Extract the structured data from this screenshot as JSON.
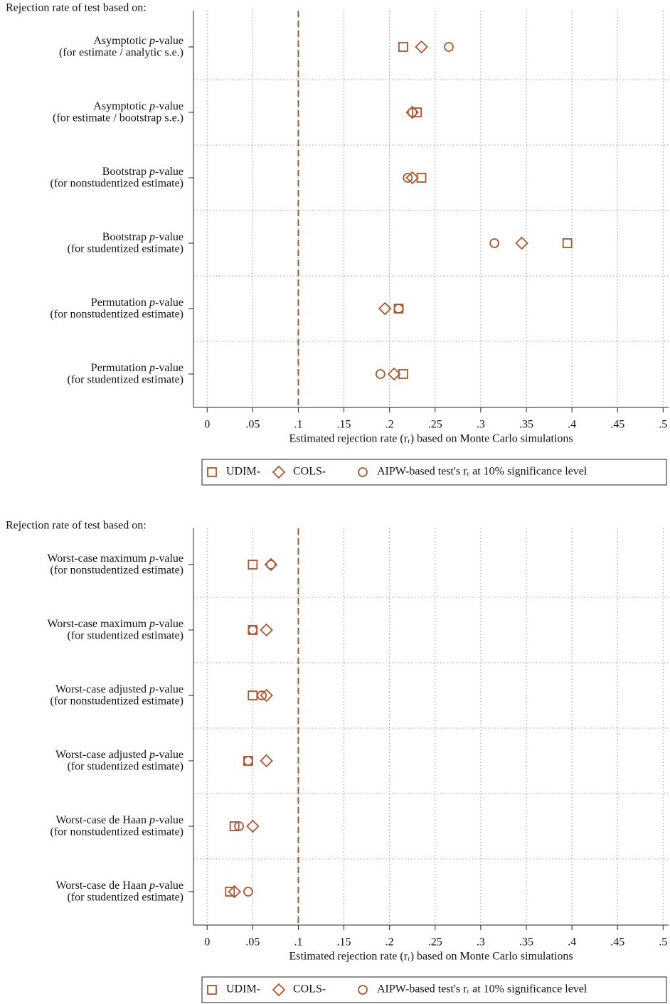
{
  "chart_data": [
    {
      "type": "dot",
      "title": "Rejection rate of test based on:",
      "categories": [
        [
          "Asymptotic p-value",
          "(for estimate / analytic s.e.)"
        ],
        [
          "Asymptotic p-value",
          "(for estimate / bootstrap s.e.)"
        ],
        [
          "Bootstrap p-value",
          "(for nonstudentized estimate)"
        ],
        [
          "Bootstrap p-value",
          "(for studentized estimate)"
        ],
        [
          "Permutation p-value",
          "(for nonstudentized estimate)"
        ],
        [
          "Permutation p-value",
          "(for studentized estimate)"
        ]
      ],
      "series": [
        {
          "name": "UDIM-",
          "marker": "square",
          "color": "#a9562f",
          "values": [
            0.215,
            0.23,
            0.235,
            0.395,
            0.21,
            0.215
          ]
        },
        {
          "name": "COLS-",
          "marker": "diamond",
          "color": "#a9562f",
          "values": [
            0.235,
            0.225,
            0.225,
            0.345,
            0.195,
            0.205
          ]
        },
        {
          "name": "AIPW-based test's rᵣ at 10% significance level",
          "marker": "circle",
          "color": "#a9562f",
          "values": [
            0.265,
            0.225,
            0.22,
            0.315,
            0.21,
            0.19
          ]
        }
      ],
      "xlabel": "Estimated rejection rate (rᵣ) based on Monte Carlo simulations",
      "xlim": [
        -0.015,
        0.506
      ],
      "xticks": [
        0,
        {
          "value": 0.05,
          "label": ".05"
        },
        {
          "value": 0.1,
          "label": ".1"
        },
        {
          "value": 0.15,
          "label": ".15"
        },
        {
          "value": 0.2,
          "label": ".2"
        },
        {
          "value": 0.25,
          "label": ".25"
        },
        {
          "value": 0.3,
          "label": ".3"
        },
        {
          "value": 0.35,
          "label": ".35"
        },
        {
          "value": 0.4,
          "label": ".4"
        },
        {
          "value": 0.45,
          "label": ".45"
        },
        {
          "value": 0.5,
          "label": ".5"
        }
      ],
      "refline": 0.1,
      "refline_color": "#a9562f",
      "grid": true,
      "legend": "bottom"
    },
    {
      "type": "dot",
      "title": "Rejection rate of test based on:",
      "categories": [
        [
          "Worst-case maximum p-value",
          "(for nonstudentized estimate)"
        ],
        [
          "Worst-case maximum p-value",
          "(for studentized estimate)"
        ],
        [
          "Worst-case adjusted p-value",
          "(for nonstudentized estimate)"
        ],
        [
          "Worst-case adjusted p-value",
          "(for studentized estimate)"
        ],
        [
          "Worst-case de Haan p-value",
          "(for nonstudentized estimate)"
        ],
        [
          "Worst-case de Haan p-value",
          "(for studentized estimate)"
        ]
      ],
      "series": [
        {
          "name": "UDIM-",
          "marker": "square",
          "color": "#a9562f",
          "values": [
            0.05,
            0.05,
            0.05,
            0.045,
            0.03,
            0.025
          ]
        },
        {
          "name": "COLS-",
          "marker": "diamond",
          "color": "#a9562f",
          "values": [
            0.07,
            0.065,
            0.065,
            0.065,
            0.05,
            0.03
          ]
        },
        {
          "name": "AIPW-based test's rᵣ at 10% significance level",
          "marker": "circle",
          "color": "#a9562f",
          "values": [
            0.07,
            0.05,
            0.06,
            0.045,
            0.035,
            0.045
          ]
        }
      ],
      "xlabel": "Estimated rejection rate (rᵣ) based on Monte Carlo simulations",
      "xlim": [
        -0.015,
        0.506
      ],
      "xticks": [
        0,
        {
          "value": 0.05,
          "label": ".05"
        },
        {
          "value": 0.1,
          "label": ".1"
        },
        {
          "value": 0.15,
          "label": ".15"
        },
        {
          "value": 0.2,
          "label": ".2"
        },
        {
          "value": 0.25,
          "label": ".25"
        },
        {
          "value": 0.3,
          "label": ".3"
        },
        {
          "value": 0.35,
          "label": ".35"
        },
        {
          "value": 0.4,
          "label": ".4"
        },
        {
          "value": 0.45,
          "label": ".45"
        },
        {
          "value": 0.5,
          "label": ".5"
        }
      ],
      "refline": 0.1,
      "refline_color": "#a9562f",
      "grid": true,
      "legend": "bottom"
    }
  ]
}
